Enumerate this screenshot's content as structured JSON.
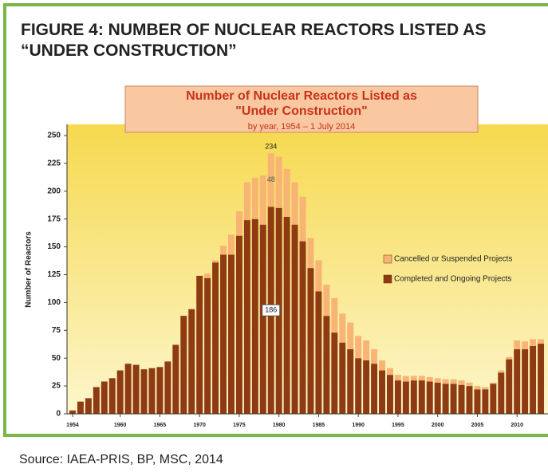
{
  "chart_data": {
    "type": "stacked_bar",
    "figure_title": "FIGURE 4: NUMBER OF NUCLEAR REACTORS LISTED AS “UNDER CONSTRUCTION”",
    "title": "Number of Nuclear Reactors Listed as \"Under Construction\"",
    "subtitle": "by year, 1954 – 1 July 2014",
    "y_label": "Number of Reactors",
    "source": "Source: IAEA-PRIS, BP, MSC, 2014",
    "x": [
      1954,
      1955,
      1956,
      1957,
      1958,
      1959,
      1960,
      1961,
      1962,
      1963,
      1964,
      1965,
      1966,
      1967,
      1968,
      1969,
      1970,
      1971,
      1972,
      1973,
      1974,
      1975,
      1976,
      1977,
      1978,
      1979,
      1980,
      1981,
      1982,
      1983,
      1984,
      1985,
      1986,
      1987,
      1988,
      1989,
      1990,
      1991,
      1992,
      1993,
      1994,
      1995,
      1996,
      1997,
      1998,
      1999,
      2000,
      2001,
      2002,
      2003,
      2004,
      2005,
      2006,
      2007,
      2008,
      2009,
      2010,
      2011,
      2012,
      2013
    ],
    "series": [
      {
        "name": "Completed and Ongoing Projects",
        "color": "#8e3a12",
        "values": [
          3,
          11,
          14,
          24,
          29,
          32,
          39,
          45,
          44,
          40,
          41,
          42,
          47,
          62,
          88,
          94,
          124,
          122,
          136,
          143,
          143,
          160,
          174,
          175,
          170,
          186,
          185,
          177,
          170,
          155,
          131,
          110,
          88,
          73,
          64,
          58,
          50,
          48,
          45,
          39,
          35,
          30,
          29,
          30,
          30,
          29,
          28,
          27,
          27,
          26,
          25,
          22,
          22,
          27,
          37,
          49,
          58,
          58,
          61,
          63
        ]
      },
      {
        "name": "Cancelled or Suspended Projects",
        "color": "#f7b474",
        "values": [
          0,
          0,
          0,
          0,
          0,
          0,
          0,
          0,
          0,
          0,
          0,
          0,
          0,
          0,
          0,
          0,
          0,
          4,
          2,
          8,
          18,
          22,
          34,
          37,
          44,
          48,
          46,
          43,
          38,
          40,
          27,
          28,
          28,
          31,
          26,
          24,
          20,
          18,
          13,
          9,
          6,
          5,
          5,
          4,
          4,
          4,
          4,
          4,
          4,
          4,
          3,
          3,
          2,
          1,
          2,
          2,
          8,
          7,
          6,
          4
        ]
      }
    ],
    "annotations": [
      {
        "x": 1979,
        "text": "234"
      },
      {
        "x": 1979,
        "text": "48"
      },
      {
        "x": 1979,
        "text": "186"
      }
    ],
    "xlim": [
      1953.4,
      2013.7
    ],
    "xticks": [
      1954,
      1960,
      1965,
      1970,
      1975,
      1980,
      1985,
      1990,
      1995,
      2000,
      2005,
      2010
    ],
    "ylim": [
      0,
      250
    ],
    "yticks": [
      0,
      25,
      50,
      75,
      100,
      125,
      150,
      175,
      200,
      225,
      250
    ],
    "legend": "right"
  }
}
